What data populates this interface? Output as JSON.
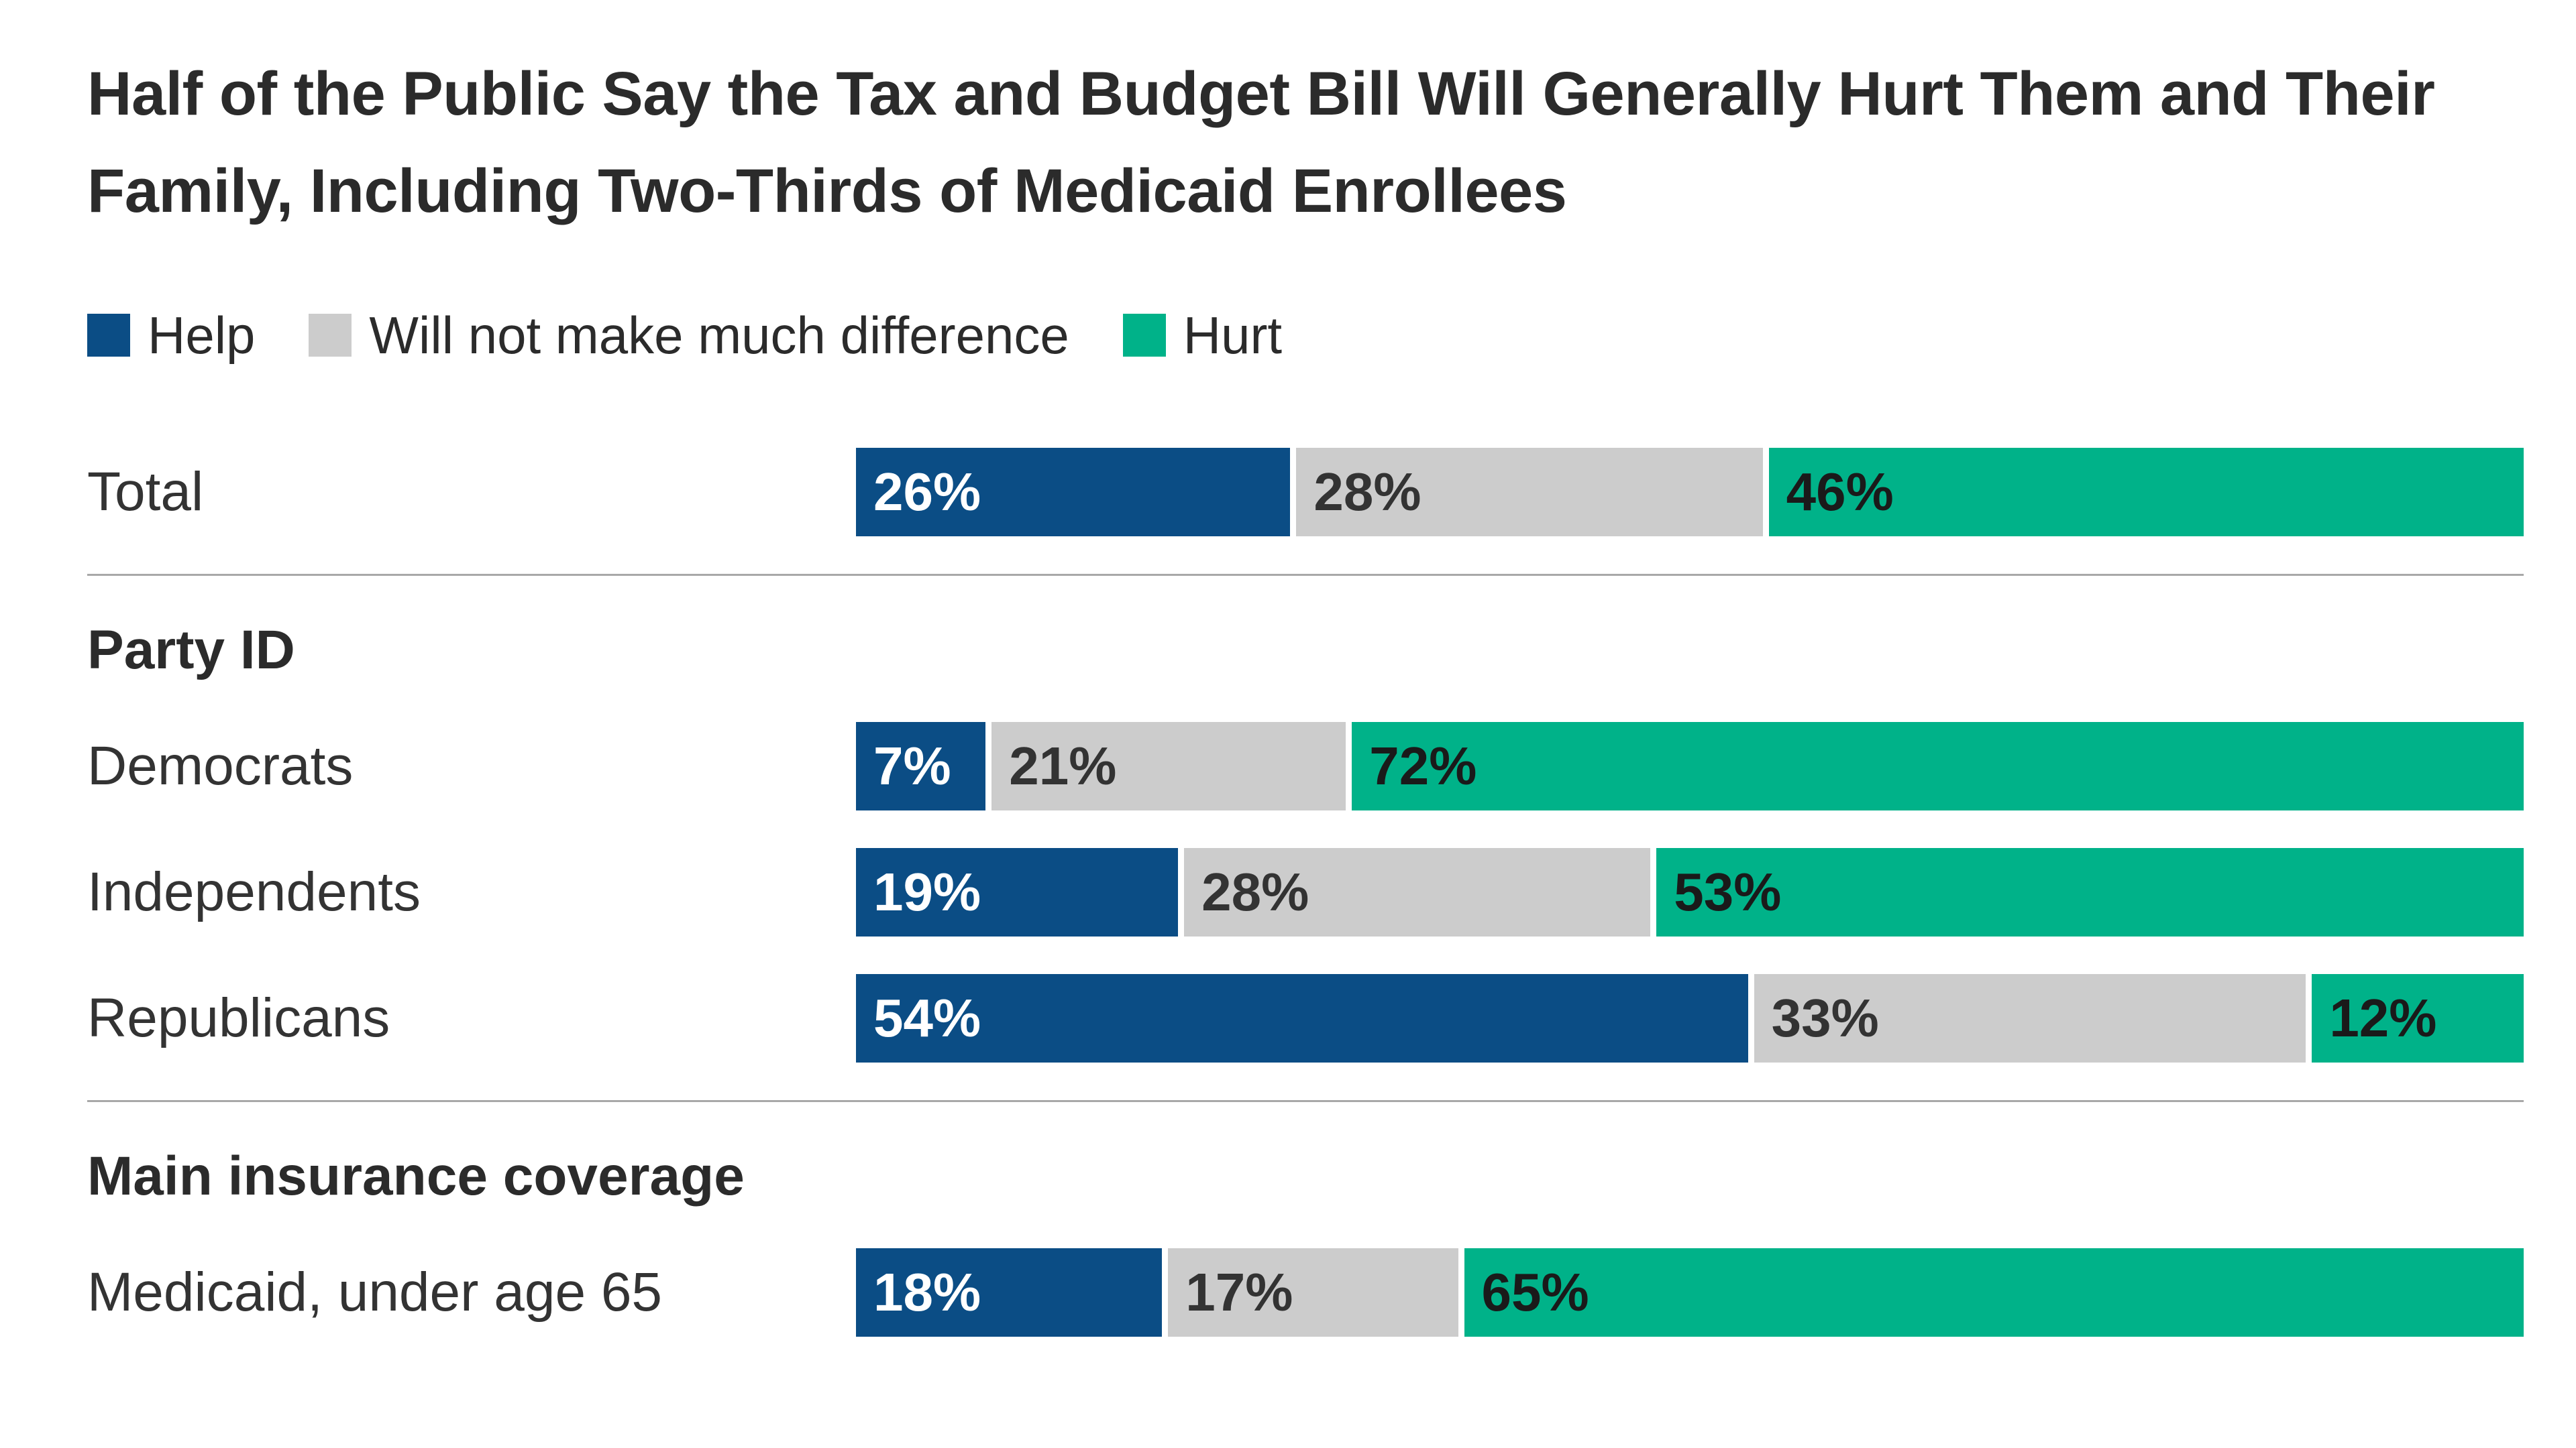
{
  "title": "Half of the Public Say the Tax and Budget Bill Will Generally Hurt Them and Their Family, Including Two-Thirds of Medicaid Enrollees",
  "chart_data": {
    "type": "bar",
    "variant": "horizontal-stacked",
    "title": "Half of the Public Say the Tax and Budget Bill Will Generally Hurt Them and Their Family, Including Two-Thirds of Medicaid Enrollees",
    "unit": "%",
    "x_range": [
      0,
      100
    ],
    "legend_position": "top-left",
    "grid": false,
    "series": [
      {
        "id": "help",
        "name": "Help",
        "color": "#0B4D85",
        "label_color": "#FFFFFF"
      },
      {
        "id": "no-difference",
        "name": "Will not make much difference",
        "color": "#CCCCCC",
        "label_color": "#333333"
      },
      {
        "id": "hurt",
        "name": "Hurt",
        "color": "#00B289",
        "label_color": "#1A1A1A"
      }
    ],
    "sections": [
      {
        "header": null,
        "rows": [
          {
            "label": "Total",
            "values": [
              26,
              28,
              46
            ]
          }
        ]
      },
      {
        "header": "Party ID",
        "rows": [
          {
            "label": "Democrats",
            "values": [
              7,
              21,
              72
            ]
          },
          {
            "label": "Independents",
            "values": [
              19,
              28,
              53
            ]
          },
          {
            "label": "Republicans",
            "values": [
              54,
              33,
              12
            ]
          }
        ]
      },
      {
        "header": "Main insurance coverage",
        "rows": [
          {
            "label": "Medicaid, under age 65",
            "values": [
              18,
              17,
              65
            ]
          }
        ]
      }
    ]
  }
}
